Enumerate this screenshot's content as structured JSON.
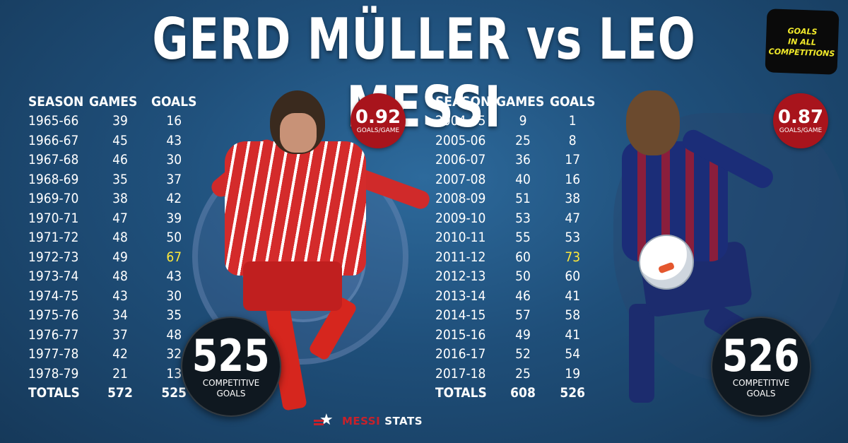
{
  "title": "GERD MÜLLER vs LEO MESSI",
  "tag": {
    "line1": "GOALS",
    "line2": "IN ALL",
    "line3": "COMPETITIONS"
  },
  "columns": {
    "season": "SEASON",
    "games": "GAMES",
    "goals": "GOALS"
  },
  "muller": {
    "rows": [
      {
        "season": "1965-66",
        "games": "39",
        "goals": "16"
      },
      {
        "season": "1966-67",
        "games": "45",
        "goals": "43"
      },
      {
        "season": "1967-68",
        "games": "46",
        "goals": "30"
      },
      {
        "season": "1968-69",
        "games": "35",
        "goals": "37"
      },
      {
        "season": "1969-70",
        "games": "38",
        "goals": "42"
      },
      {
        "season": "1970-71",
        "games": "47",
        "goals": "39"
      },
      {
        "season": "1971-72",
        "games": "48",
        "goals": "50"
      },
      {
        "season": "1972-73",
        "games": "49",
        "goals": "67"
      },
      {
        "season": "1973-74",
        "games": "48",
        "goals": "43"
      },
      {
        "season": "1974-75",
        "games": "43",
        "goals": "30"
      },
      {
        "season": "1975-76",
        "games": "34",
        "goals": "35"
      },
      {
        "season": "1976-77",
        "games": "37",
        "goals": "48"
      },
      {
        "season": "1977-78",
        "games": "42",
        "goals": "32"
      },
      {
        "season": "1978-79",
        "games": "21",
        "goals": "13"
      }
    ],
    "totals": {
      "label": "TOTALS",
      "games": "572",
      "goals": "525"
    },
    "ratio": {
      "value": "0.92",
      "label": "GOALS/GAME"
    },
    "total_circle": {
      "value": "525",
      "line1": "COMPETITIVE",
      "line2": "GOALS"
    }
  },
  "messi": {
    "rows": [
      {
        "season": "2004-05",
        "games": "9",
        "goals": "1"
      },
      {
        "season": "2005-06",
        "games": "25",
        "goals": "8"
      },
      {
        "season": "2006-07",
        "games": "36",
        "goals": "17"
      },
      {
        "season": "2007-08",
        "games": "40",
        "goals": "16"
      },
      {
        "season": "2008-09",
        "games": "51",
        "goals": "38"
      },
      {
        "season": "2009-10",
        "games": "53",
        "goals": "47"
      },
      {
        "season": "2010-11",
        "games": "55",
        "goals": "53"
      },
      {
        "season": "2011-12",
        "games": "60",
        "goals": "73"
      },
      {
        "season": "2012-13",
        "games": "50",
        "goals": "60"
      },
      {
        "season": "2013-14",
        "games": "46",
        "goals": "41"
      },
      {
        "season": "2014-15",
        "games": "57",
        "goals": "58"
      },
      {
        "season": "2015-16",
        "games": "49",
        "goals": "41"
      },
      {
        "season": "2016-17",
        "games": "52",
        "goals": "54"
      },
      {
        "season": "2017-18",
        "games": "25",
        "goals": "19"
      }
    ],
    "totals": {
      "label": "TOTALS",
      "games": "608",
      "goals": "526"
    },
    "ratio": {
      "value": "0.87",
      "label": "GOALS/GAME"
    },
    "total_circle": {
      "value": "526",
      "line1": "COMPETITIVE",
      "line2": "GOALS"
    }
  },
  "brand": {
    "part1": "MESSI",
    "part2": "STATS"
  },
  "colors": {
    "highlight": "#ffe93b",
    "ratio_badge": "#a8141c",
    "background": "#1f4f7a"
  }
}
